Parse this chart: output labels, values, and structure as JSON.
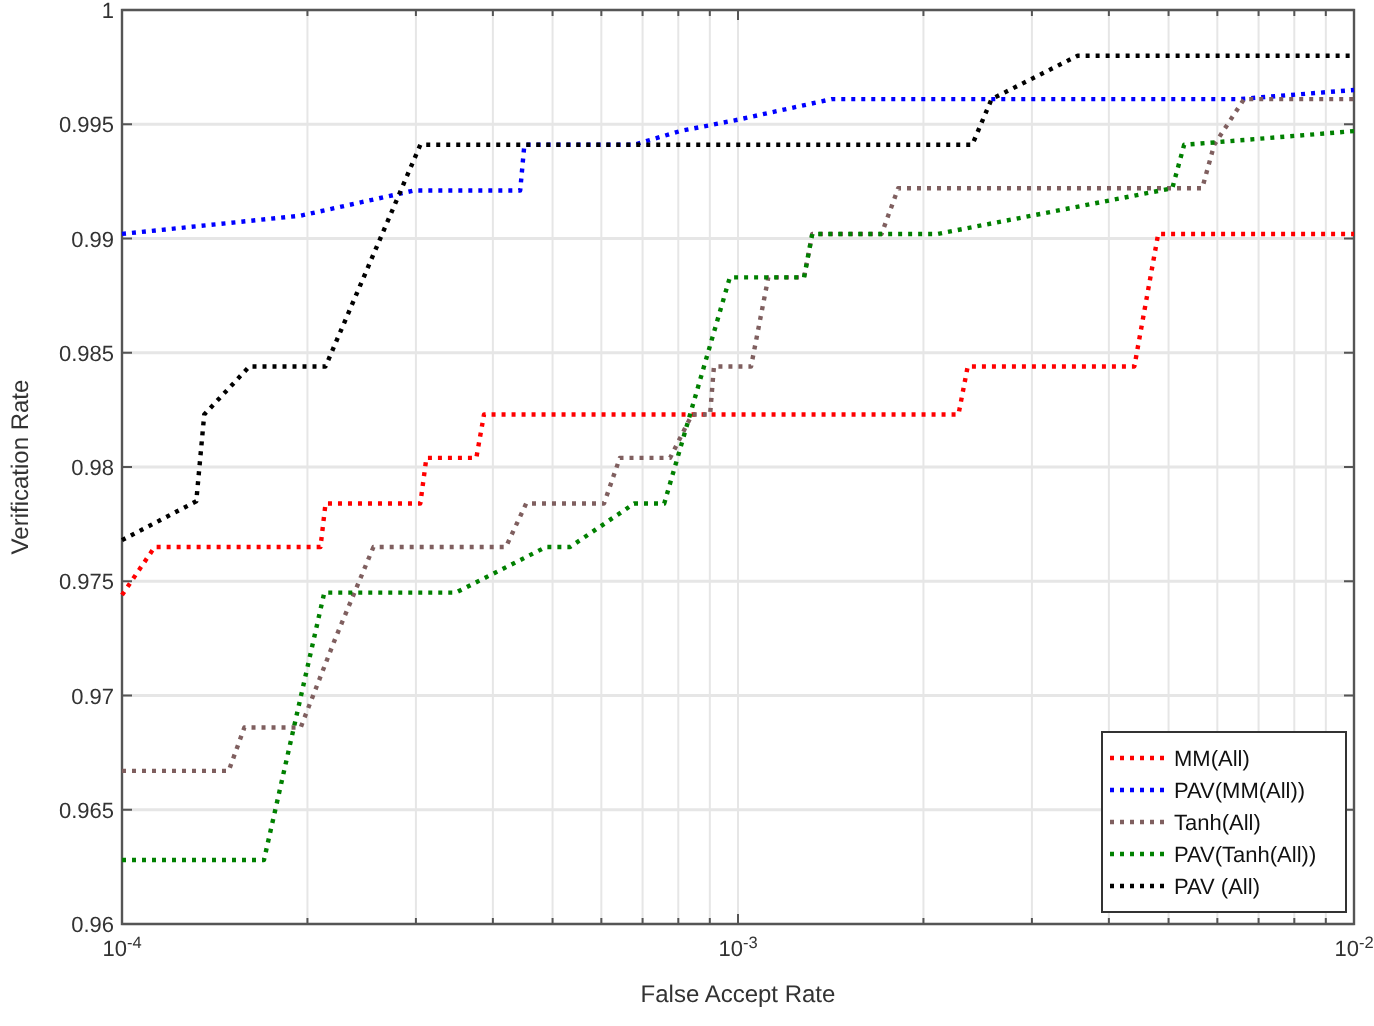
{
  "chart_data": {
    "type": "line",
    "xlabel": "False Accept Rate",
    "ylabel": "Verification Rate",
    "log": "x",
    "grid": true,
    "legend": "bottom right",
    "line_style": "dotted",
    "xlim": [
      0.0001,
      0.01
    ],
    "ylim": [
      0.96,
      1
    ],
    "xticks": [
      {
        "value": 0.0001,
        "label": "10$^{-4}$"
      },
      {
        "value": 0.0002,
        "label": null
      },
      {
        "value": 0.0003,
        "label": null
      },
      {
        "value": 0.0004,
        "label": null
      },
      {
        "value": 0.0005,
        "label": null
      },
      {
        "value": 0.0006,
        "label": null
      },
      {
        "value": 0.0007,
        "label": null
      },
      {
        "value": 0.0008,
        "label": null
      },
      {
        "value": 0.0009,
        "label": null
      },
      {
        "value": 0.001,
        "label": "10$^{-3}$"
      },
      {
        "value": 0.002,
        "label": null
      },
      {
        "value": 0.003,
        "label": null
      },
      {
        "value": 0.004,
        "label": null
      },
      {
        "value": 0.005,
        "label": null
      },
      {
        "value": 0.006,
        "label": null
      },
      {
        "value": 0.007,
        "label": null
      },
      {
        "value": 0.008,
        "label": null
      },
      {
        "value": 0.009,
        "label": null
      },
      {
        "value": 0.01,
        "label": "10$^{-2}$"
      }
    ],
    "yticks": [
      0.96,
      0.965,
      0.97,
      0.975,
      0.98,
      0.985,
      0.99,
      0.995,
      1
    ],
    "series": [
      {
        "name": "MM(All)",
        "color": "#ff0000",
        "x": [
          0.0001,
          0.000113,
          0.00021,
          0.000214,
          0.000305,
          0.000312,
          0.000376,
          0.000387,
          0.00228,
          0.00236,
          0.0044,
          0.00481,
          0.01
        ],
        "values": [
          0.9744,
          0.9765,
          0.9765,
          0.9784,
          0.9784,
          0.9804,
          0.9804,
          0.9823,
          0.9823,
          0.9844,
          0.9844,
          0.9902,
          0.9902
        ]
      },
      {
        "name": "PAV(MM(All))",
        "color": "#0000ff",
        "x": [
          0.0001,
          0.000195,
          0.000298,
          0.000443,
          0.00045,
          0.000678,
          0.000805,
          0.001,
          0.00142,
          0.00649,
          0.01
        ],
        "values": [
          0.9902,
          0.991,
          0.9921,
          0.9921,
          0.9941,
          0.9941,
          0.9947,
          0.9952,
          0.9961,
          0.9961,
          0.9965
        ]
      },
      {
        "name": "Tanh(All)",
        "color": "#7f5f5f",
        "x": [
          0.0001,
          0.000149,
          0.000158,
          0.000195,
          0.000222,
          0.000256,
          0.00042,
          0.000453,
          0.000606,
          0.000643,
          0.000776,
          0.000842,
          0.000901,
          0.000914,
          0.00105,
          0.00112,
          0.00128,
          0.00132,
          0.00171,
          0.00182,
          0.00567,
          0.00593,
          0.00663,
          0.01
        ],
        "values": [
          0.9667,
          0.9667,
          0.9686,
          0.9686,
          0.9725,
          0.9765,
          0.9765,
          0.9784,
          0.9784,
          0.9804,
          0.9804,
          0.9823,
          0.9823,
          0.9844,
          0.9844,
          0.9883,
          0.9883,
          0.9902,
          0.9902,
          0.9922,
          0.9922,
          0.9941,
          0.9961,
          0.9961
        ]
      },
      {
        "name": "PAV(Tanh(All))",
        "color": "#008000",
        "x": [
          0.0001,
          0.00017,
          0.000213,
          0.000348,
          0.000488,
          0.000534,
          0.000678,
          0.000759,
          0.00097,
          0.00128,
          0.00132,
          0.00211,
          0.00507,
          0.0053,
          0.01
        ],
        "values": [
          0.9628,
          0.9628,
          0.9745,
          0.9745,
          0.9765,
          0.9765,
          0.9784,
          0.9784,
          0.9883,
          0.9883,
          0.9902,
          0.9902,
          0.9922,
          0.9941,
          0.9947
        ]
      },
      {
        "name": "PAV (All)",
        "color": "#000000",
        "x": [
          0.0001,
          0.000132,
          0.000136,
          0.000161,
          0.000214,
          0.000305,
          0.0024,
          0.00258,
          0.00356,
          0.01
        ],
        "values": [
          0.9768,
          0.9785,
          0.9823,
          0.9844,
          0.9844,
          0.9941,
          0.9941,
          0.9961,
          0.998,
          0.998
        ]
      }
    ]
  }
}
